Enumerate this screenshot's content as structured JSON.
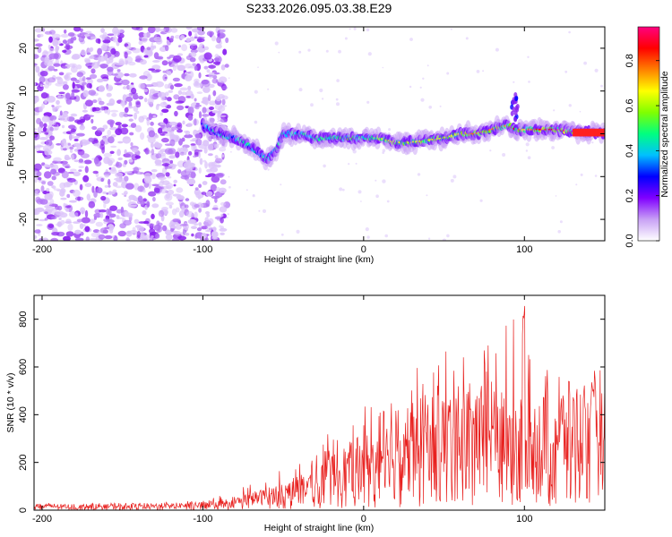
{
  "title": "S233.2026.095.03.38.E29",
  "colors": {
    "snr_line": "#e8201e",
    "axis": "#000000"
  },
  "colormap": [
    "#ffffff",
    "#c8a0f5",
    "#8000ff",
    "#0000ff",
    "#00c0ff",
    "#00ff80",
    "#80ff00",
    "#ffff00",
    "#ff8000",
    "#ff0000",
    "#ff0080"
  ],
  "chart_data": [
    {
      "type": "heatmap",
      "title": "S233.2026.095.03.38.E29",
      "xlabel": "Height of straight line (km)",
      "ylabel": "Frequency (Hz)",
      "xlim": [
        -205,
        150
      ],
      "ylim": [
        -25,
        25
      ],
      "x_ticks": [
        -200,
        -100,
        0,
        100
      ],
      "x_tick_labels": [
        "-200",
        "-100",
        "0",
        "100"
      ],
      "y_ticks": [
        -20,
        -10,
        0,
        10,
        20
      ],
      "y_tick_labels": [
        "-20",
        "-10",
        "0",
        "10",
        "20"
      ],
      "ridge": {
        "description_points_x": [
          -100,
          -90,
          -80,
          -70,
          -60,
          -55,
          -50,
          -40,
          -30,
          -20,
          -10,
          0,
          10,
          20,
          30,
          40,
          50,
          60,
          70,
          80,
          90,
          95,
          100,
          110,
          120,
          130,
          140,
          150
        ],
        "description_points_y": [
          2,
          0,
          -1,
          -3,
          -6,
          -4,
          0,
          0,
          -1,
          -1,
          -1,
          -1,
          -1,
          -2,
          -2,
          -1.5,
          -1,
          0,
          0,
          1,
          2,
          1,
          1,
          1,
          1,
          0.5,
          0.3,
          0.3
        ],
        "amplitude": [
          0.15,
          0.2,
          0.25,
          0.3,
          0.3,
          0.3,
          0.35,
          0.4,
          0.45,
          0.45,
          0.5,
          0.5,
          0.55,
          0.6,
          0.6,
          0.6,
          0.6,
          0.65,
          0.65,
          0.7,
          0.75,
          0.75,
          0.6,
          0.8,
          0.85,
          0.9,
          0.95,
          0.95
        ]
      },
      "noise_region_x": [
        -205,
        -95
      ]
    },
    {
      "type": "colorbar",
      "label": "Normalized spectral amplitude",
      "range": [
        0.0,
        0.95
      ],
      "ticks": [
        0.0,
        0.2,
        0.4,
        0.6,
        0.8
      ],
      "tick_labels": [
        "0.0",
        "0.2",
        "0.4",
        "0.6",
        "0.8"
      ]
    },
    {
      "type": "line",
      "xlabel": "Height of straight line (km)",
      "ylabel": "SNR (10 * v/v)",
      "xlim": [
        -205,
        150
      ],
      "ylim": [
        0,
        900
      ],
      "x_ticks": [
        -200,
        -100,
        0,
        100
      ],
      "x_tick_labels": [
        "-200",
        "-100",
        "0",
        "100"
      ],
      "y_ticks": [
        0,
        200,
        400,
        600,
        800
      ],
      "y_tick_labels": [
        "0",
        "200",
        "400",
        "600",
        "800"
      ],
      "envelope": {
        "x": [
          -205,
          -150,
          -100,
          -80,
          -60,
          -40,
          -20,
          0,
          20,
          40,
          60,
          80,
          100,
          120,
          140,
          150
        ],
        "mean": [
          15,
          15,
          20,
          35,
          55,
          90,
          140,
          190,
          240,
          290,
          310,
          320,
          300,
          310,
          330,
          380
        ],
        "peak": [
          30,
          30,
          40,
          90,
          130,
          230,
          330,
          440,
          520,
          640,
          700,
          740,
          860,
          600,
          480,
          560
        ]
      }
    }
  ]
}
